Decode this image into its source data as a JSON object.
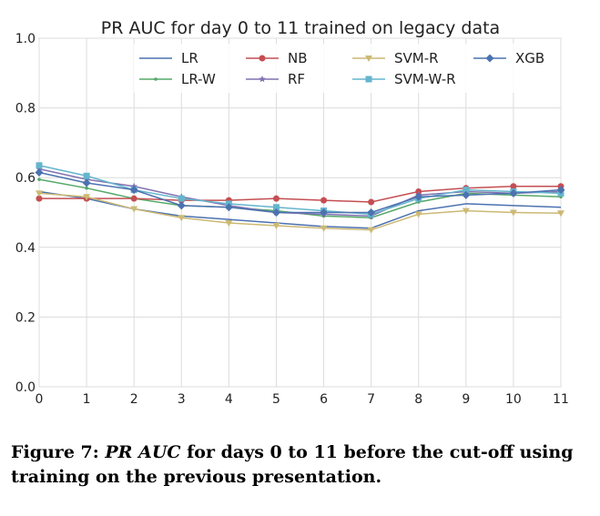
{
  "chart_data": {
    "type": "line",
    "title": "PR AUC for day 0 to 11 trained on legacy data",
    "xlabel": "",
    "ylabel": "",
    "x": [
      0,
      1,
      2,
      3,
      4,
      5,
      6,
      7,
      8,
      9,
      10,
      11
    ],
    "xlim": [
      0,
      11
    ],
    "ylim": [
      0.0,
      1.0
    ],
    "xticks": [
      "0",
      "1",
      "2",
      "3",
      "4",
      "5",
      "6",
      "7",
      "8",
      "9",
      "10",
      "11"
    ],
    "yticks": [
      "0.0",
      "0.2",
      "0.4",
      "0.6",
      "0.8",
      "1.0"
    ],
    "grid": true,
    "legend_position": "top",
    "series": [
      {
        "name": "LR",
        "color": "#4c72b0",
        "marker": "none",
        "values": [
          0.56,
          0.54,
          0.51,
          0.49,
          0.48,
          0.47,
          0.46,
          0.455,
          0.505,
          0.525,
          0.52,
          0.515
        ]
      },
      {
        "name": "LR-W",
        "color": "#55a868",
        "marker": "dot",
        "values": [
          0.595,
          0.57,
          0.54,
          0.52,
          0.515,
          0.505,
          0.49,
          0.485,
          0.53,
          0.555,
          0.55,
          0.545
        ]
      },
      {
        "name": "NB",
        "color": "#c44e52",
        "marker": "circle",
        "values": [
          0.54,
          0.54,
          0.54,
          0.535,
          0.535,
          0.54,
          0.535,
          0.53,
          0.56,
          0.57,
          0.575,
          0.575
        ]
      },
      {
        "name": "RF",
        "color": "#8172b2",
        "marker": "star",
        "values": [
          0.625,
          0.595,
          0.575,
          0.545,
          0.52,
          0.5,
          0.495,
          0.49,
          0.55,
          0.56,
          0.555,
          0.56
        ]
      },
      {
        "name": "SVM-R",
        "color": "#ccb974",
        "marker": "triangle",
        "values": [
          0.555,
          0.545,
          0.51,
          0.485,
          0.47,
          0.462,
          0.455,
          0.45,
          0.495,
          0.505,
          0.5,
          0.498
        ]
      },
      {
        "name": "SVM-W-R",
        "color": "#64b5cd",
        "marker": "square",
        "values": [
          0.635,
          0.605,
          0.565,
          0.54,
          0.525,
          0.515,
          0.505,
          0.495,
          0.54,
          0.565,
          0.56,
          0.555
        ]
      },
      {
        "name": "XGB",
        "color": "#4c72b0",
        "marker": "diamond",
        "values": [
          0.615,
          0.585,
          0.565,
          0.52,
          0.515,
          0.5,
          0.5,
          0.5,
          0.545,
          0.55,
          0.555,
          0.565
        ]
      }
    ]
  },
  "caption": {
    "label": "Figure 7:",
    "math": "PR AUC",
    "rest": " for days 0 to 11 before the cut-off using training on the previous presentation."
  }
}
